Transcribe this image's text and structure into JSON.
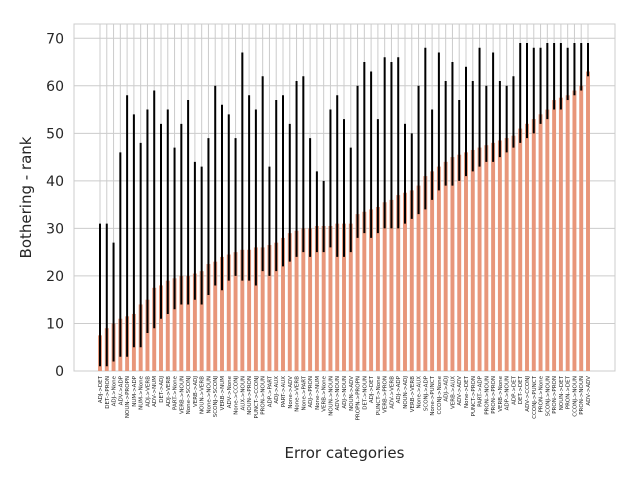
{
  "chart_data": {
    "type": "bar",
    "xlabel": "Error categories",
    "ylabel": "Bothering - rank",
    "ylim": [
      0,
      73
    ],
    "yticks": [
      0,
      10,
      20,
      30,
      40,
      50,
      60,
      70
    ],
    "grid": true,
    "bar_color": "#e8967a",
    "error_bar_color": "#000000",
    "grid_color": "#cccccc",
    "categories": [
      "ADJ->DET",
      "DET->PRON",
      "ADJ->None",
      "ADV->ADP",
      "NOUN->PROPN",
      "NUM->ADP",
      "NUM->None",
      "ADJ->VERB",
      "ADV->NUM",
      "DET->ADJ",
      "ADJ->VERB",
      "PART->None",
      "VERB->NOUN",
      "None->SCONJ",
      "VERB->ADJ",
      "NOUN->VERB",
      "None->NOUN",
      "SCONJ->SCONJ",
      "VERB->NUM",
      "ADV->None",
      "None->CCONJ",
      "AUX->NOUN",
      "NOUN->PRON",
      "PUNCT->CCONJ",
      "PRON->NOUN",
      "ADP->PART",
      "ADJ->AUX",
      "PART->AUX",
      "None->ADV",
      "None->VERB",
      "None->PART",
      "ADJ->PRON",
      "None->NUM",
      "VERB->None",
      "NOUN->NOUN",
      "ADV->NOUN",
      "ADJ->NOUN",
      "NOUN->ADV",
      "PROPN->PROPN",
      "DET->NOUN",
      "ADJ->DET",
      "PUNCT->None",
      "VERB->PRON",
      "ADV->VERB",
      "ADJ->ADP",
      "NOUN->ADJ",
      "VERB->VERB",
      "None->AUX",
      "SCONJ->ADP",
      "None->PUNCT",
      "CCONJ->None",
      "ADJ->ADJ",
      "VERB->AUX",
      "ADV->ADV",
      "None->DET",
      "PUNCT->PRON",
      "PART->ADP",
      "PRON->NOUN",
      "PRON->PRON",
      "VERB->None",
      "ADP->NOUN",
      "ADP->DET",
      "DET->DET",
      "ADV->CCONJ",
      "CCONJ->PUNCT",
      "PRON->None",
      "SCONJ->NOUN",
      "PRON->PRON",
      "NOUN->DET",
      "PRON->DET",
      "CCONJ->NOUN",
      "PRON->NOUN",
      "ADV->ADV"
    ],
    "values": [
      7.5,
      9,
      10,
      11,
      11.5,
      12,
      14,
      15,
      17.5,
      18,
      19,
      19.5,
      20,
      20,
      20.5,
      21,
      22.5,
      23,
      24,
      24.5,
      25,
      25.5,
      25.5,
      26,
      26,
      26.5,
      27,
      28,
      29,
      29.5,
      30,
      30,
      30.5,
      30.5,
      30.5,
      31,
      31,
      31,
      33,
      33.5,
      34,
      34.5,
      35.5,
      36,
      37,
      37.5,
      38,
      39,
      41,
      42,
      43,
      44,
      45,
      45.5,
      46,
      46.5,
      47,
      47.5,
      48,
      48.5,
      49,
      49.5,
      51,
      52,
      53,
      54,
      55,
      57,
      57.5,
      58,
      59,
      60,
      63
    ],
    "error_low": [
      1,
      1,
      2,
      3,
      3,
      5,
      5,
      8,
      9,
      11,
      12,
      13,
      14,
      14,
      15,
      14,
      16,
      18,
      17,
      19,
      20,
      19,
      19,
      18,
      21,
      20,
      21,
      22,
      23,
      24,
      25,
      24,
      25,
      25,
      26,
      24,
      24,
      25,
      28,
      29,
      28,
      29,
      30,
      30,
      30,
      31,
      32,
      33,
      34,
      36,
      38,
      39,
      39,
      40,
      41,
      42,
      43,
      44,
      44,
      45,
      46,
      47,
      48,
      49,
      50,
      52,
      53,
      55,
      55,
      57,
      58,
      59,
      62
    ],
    "error_high": [
      31,
      31,
      27,
      46,
      58,
      54,
      48,
      55,
      59,
      52,
      55,
      47,
      52,
      57,
      44,
      43,
      49,
      60,
      56,
      54,
      49,
      67,
      58,
      55,
      62,
      43,
      57,
      58,
      52,
      61,
      62,
      49,
      42,
      40,
      55,
      58,
      53,
      47,
      60,
      65,
      63,
      53,
      66,
      65,
      66,
      52,
      50,
      60,
      68,
      55,
      67,
      61,
      65,
      57,
      64,
      61,
      68,
      60,
      67,
      61,
      60,
      62,
      69,
      69,
      68,
      68,
      69,
      69,
      69,
      68,
      69,
      69,
      69
    ],
    "bar_low_ext": [
      1,
      1,
      2,
      11,
      4,
      8,
      5,
      8,
      1,
      14,
      2,
      2,
      4,
      3,
      1,
      8,
      10,
      2,
      2,
      6,
      24,
      9,
      1,
      3,
      6,
      1,
      15,
      8,
      8,
      12,
      8,
      24,
      15,
      20,
      18,
      11,
      8,
      12,
      21,
      15,
      4,
      19,
      5,
      4,
      6,
      24,
      29,
      18,
      8,
      30,
      10,
      23,
      28,
      16,
      18,
      9,
      18,
      23,
      13,
      33,
      40,
      11,
      16,
      21,
      31,
      26,
      27,
      28,
      31,
      38,
      35,
      48,
      48
    ]
  }
}
